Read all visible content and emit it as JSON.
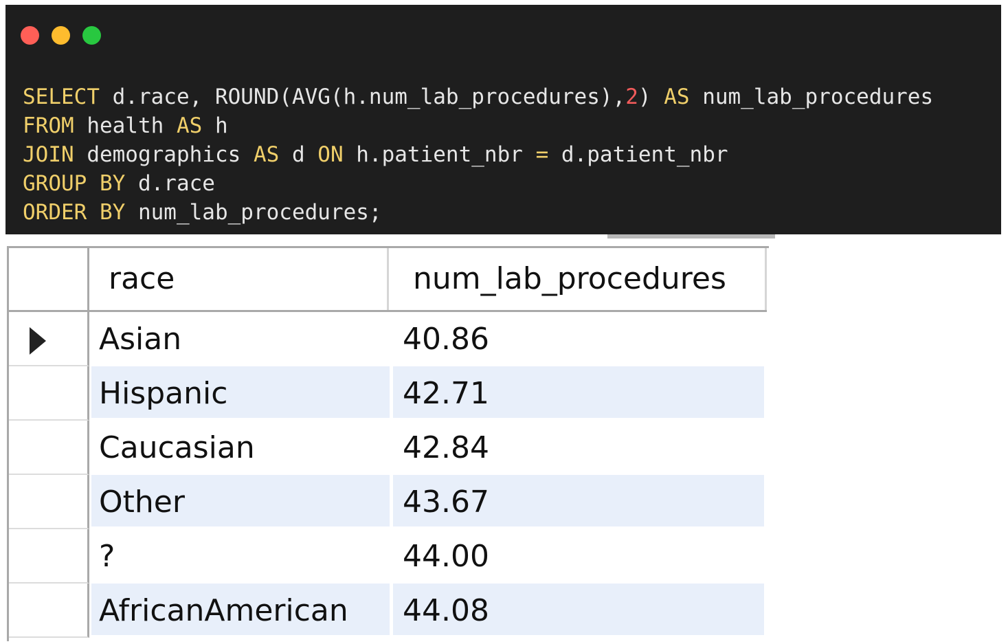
{
  "editor": {
    "lines": [
      [
        {
          "t": "SELECT",
          "c": "kw"
        },
        {
          "t": " d.race, ROUND(AVG(h.num_lab_procedures),",
          "c": ""
        },
        {
          "t": "2",
          "c": "num"
        },
        {
          "t": ") ",
          "c": ""
        },
        {
          "t": "AS",
          "c": "kw"
        },
        {
          "t": " num_lab_procedures",
          "c": ""
        }
      ],
      [
        {
          "t": "FROM",
          "c": "kw"
        },
        {
          "t": " health ",
          "c": ""
        },
        {
          "t": "AS",
          "c": "kw"
        },
        {
          "t": " h",
          "c": ""
        }
      ],
      [
        {
          "t": "JOIN",
          "c": "kw"
        },
        {
          "t": " demographics ",
          "c": ""
        },
        {
          "t": "AS",
          "c": "kw"
        },
        {
          "t": " d ",
          "c": ""
        },
        {
          "t": "ON",
          "c": "kw"
        },
        {
          "t": " h.patient_nbr ",
          "c": ""
        },
        {
          "t": "=",
          "c": "kw"
        },
        {
          "t": " d.patient_nbr",
          "c": ""
        }
      ],
      [
        {
          "t": "GROUP BY",
          "c": "kw"
        },
        {
          "t": " d.race",
          "c": ""
        }
      ],
      [
        {
          "t": "ORDER BY",
          "c": "kw"
        },
        {
          "t": " num_lab_procedures;",
          "c": ""
        }
      ]
    ],
    "colors": {
      "background": "#1e1e1e",
      "keyword": "#f0cf6a",
      "number": "#f05a5a",
      "text": "#e6e6e6",
      "dot_close": "#ff5f57",
      "dot_minimize": "#febc2e",
      "dot_maximize": "#28c840"
    }
  },
  "grid": {
    "columns": [
      "race",
      "num_lab_procedures"
    ],
    "rows": [
      {
        "race": "Asian",
        "num_lab_procedures": "40.86",
        "current": true
      },
      {
        "race": "Hispanic",
        "num_lab_procedures": "42.71"
      },
      {
        "race": "Caucasian",
        "num_lab_procedures": "42.84"
      },
      {
        "race": "Other",
        "num_lab_procedures": "43.67"
      },
      {
        "race": "?",
        "num_lab_procedures": "44.00"
      },
      {
        "race": "AfricanAmerican",
        "num_lab_procedures": "44.08"
      }
    ],
    "alt_row_color": "#e8effa",
    "current_row_icon": "row-pointer-icon"
  }
}
